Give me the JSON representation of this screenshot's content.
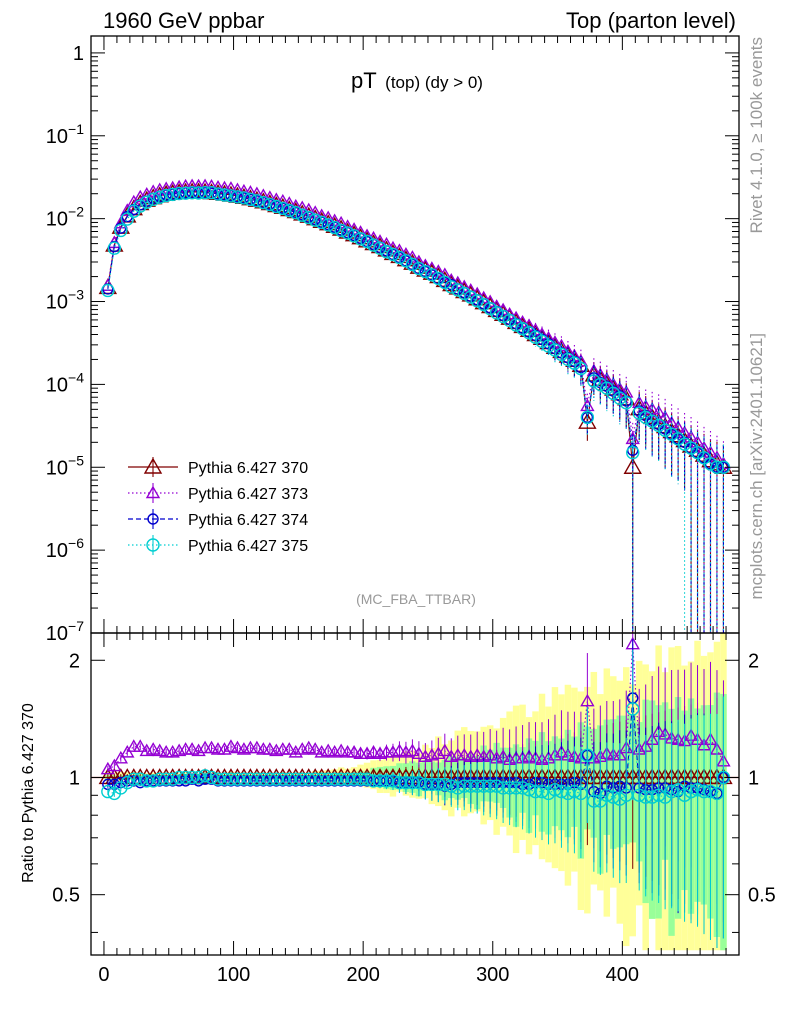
{
  "header": {
    "left": "1960 GeV ppbar",
    "right": "Top (parton level)"
  },
  "side_labels": {
    "rivet": "Rivet 4.1.0, ≥ 100k events",
    "mcplots": "mcplots.cern.ch [arXiv:2401.10621]"
  },
  "chart_data": {
    "type": "line",
    "title_main": "pT",
    "title_sub": "(top) (dy > 0)",
    "watermark": "(MC_FBA_TTBAR)",
    "xlabel": "",
    "ylabel_main": "",
    "ylabel_ratio": "Ratio to Pythia 6.427 370",
    "xlim": [
      -10,
      490
    ],
    "ylim_main": [
      1e-07,
      1.6
    ],
    "ylim_ratio": [
      0.35,
      2.35
    ],
    "y_scale_main": "log",
    "y_scale_ratio": "log",
    "x_ticks": [
      "0",
      "100",
      "200",
      "300",
      "400"
    ],
    "y_ticks_main": [
      {
        "value": 1,
        "base": "1",
        "exp": ""
      },
      {
        "value": 0.1,
        "base": "10",
        "exp": "−1"
      },
      {
        "value": 0.01,
        "base": "10",
        "exp": "−2"
      },
      {
        "value": 0.001,
        "base": "10",
        "exp": "−3"
      },
      {
        "value": 0.0001,
        "base": "10",
        "exp": "−4"
      },
      {
        "value": 1e-05,
        "base": "10",
        "exp": "−5"
      },
      {
        "value": 1e-06,
        "base": "10",
        "exp": "−6"
      },
      {
        "value": 1e-07,
        "base": "10",
        "exp": "−7"
      }
    ],
    "y_ticks_ratio": [
      {
        "value": 0.5,
        "label": "0.5"
      },
      {
        "value": 1,
        "label": "1"
      },
      {
        "value": 2,
        "label": "2"
      }
    ],
    "x": [
      3,
      8,
      13,
      18,
      23,
      28,
      33,
      38,
      43,
      48,
      53,
      58,
      63,
      68,
      73,
      78,
      83,
      88,
      93,
      98,
      103,
      108,
      113,
      118,
      123,
      128,
      133,
      138,
      143,
      148,
      153,
      158,
      163,
      168,
      173,
      178,
      183,
      188,
      193,
      198,
      203,
      208,
      213,
      218,
      223,
      228,
      233,
      238,
      243,
      248,
      253,
      258,
      263,
      268,
      273,
      278,
      283,
      288,
      293,
      298,
      303,
      308,
      313,
      318,
      323,
      328,
      333,
      338,
      343,
      348,
      353,
      358,
      363,
      368,
      373,
      378,
      383,
      388,
      393,
      398,
      403,
      408,
      413,
      418,
      423,
      428,
      433,
      438,
      443,
      448,
      453,
      458,
      463,
      468,
      473,
      478
    ],
    "series": [
      {
        "name": "Pythia 6.427 370",
        "color": "#800000",
        "marker": "triangle-up-open",
        "line": "solid",
        "values": [
          0.00148,
          0.0048,
          0.0079,
          0.0108,
          0.0132,
          0.0152,
          0.0167,
          0.0179,
          0.0189,
          0.0197,
          0.0202,
          0.0206,
          0.0209,
          0.021,
          0.021,
          0.0209,
          0.0206,
          0.0202,
          0.0198,
          0.0193,
          0.0187,
          0.0181,
          0.0174,
          0.0167,
          0.016,
          0.0152,
          0.0144,
          0.0137,
          0.0129,
          0.0122,
          0.0114,
          0.0107,
          0.01,
          0.0093,
          0.0087,
          0.0081,
          0.0075,
          0.0069,
          0.0064,
          0.0059,
          0.0054,
          0.005,
          0.0046,
          0.0042,
          0.0038,
          0.0035,
          0.0032,
          0.0029,
          0.0026,
          0.0024,
          0.0022,
          0.002,
          0.0018,
          0.0016,
          0.00146,
          0.00132,
          0.0012,
          0.00108,
          0.00097,
          0.00087,
          0.00078,
          0.0007,
          0.00063,
          0.00056,
          0.0005,
          0.00045,
          0.0004,
          0.00036,
          0.00032,
          0.00028,
          0.00025,
          0.00022,
          0.000195,
          0.00017,
          3.5e-05,
          0.00013,
          0.000115,
          0.0001,
          8.8e-05,
          7.7e-05,
          6.7e-05,
          1e-05,
          5.1e-05,
          4.5e-05,
          4e-05,
          3.5e-05,
          3.1e-05,
          2.7e-05,
          2.4e-05,
          2.1e-05,
          1.8e-05,
          1.6e-05,
          1.4e-05,
          1.2e-05,
          1.1e-05,
          1e-05
        ],
        "ratio": [
          1,
          1,
          1,
          1,
          1,
          1,
          1,
          1,
          1,
          1,
          1,
          1,
          1,
          1,
          1,
          1,
          1,
          1,
          1,
          1,
          1,
          1,
          1,
          1,
          1,
          1,
          1,
          1,
          1,
          1,
          1,
          1,
          1,
          1,
          1,
          1,
          1,
          1,
          1,
          1,
          1,
          1,
          1,
          1,
          1,
          1,
          1,
          1,
          1,
          1,
          1,
          1,
          1,
          1,
          1,
          1,
          1,
          1,
          1,
          1,
          1,
          1,
          1,
          1,
          1,
          1,
          1,
          1,
          1,
          1,
          1,
          1,
          1,
          1,
          1,
          1,
          1,
          1,
          1,
          1,
          1,
          1,
          1,
          1,
          1,
          1,
          1,
          1,
          1,
          1,
          1,
          1,
          1,
          1,
          1,
          1
        ]
      },
      {
        "name": "Pythia 6.427 373",
        "color": "#9400D3",
        "marker": "triangle-up-open-small",
        "line": "dotted",
        "values": [
          0.00155,
          0.0051,
          0.0088,
          0.0125,
          0.0158,
          0.0182,
          0.0196,
          0.0211,
          0.0222,
          0.0229,
          0.0234,
          0.024,
          0.0246,
          0.0248,
          0.0247,
          0.0248,
          0.0245,
          0.0238,
          0.0234,
          0.0231,
          0.0222,
          0.0214,
          0.0207,
          0.0199,
          0.0189,
          0.0179,
          0.0169,
          0.0162,
          0.0152,
          0.0141,
          0.0135,
          0.0127,
          0.0118,
          0.0108,
          0.0102,
          0.0094,
          0.0088,
          0.008,
          0.0074,
          0.0068,
          0.0062,
          0.0058,
          0.0053,
          0.0049,
          0.0044,
          0.0041,
          0.0037,
          0.0034,
          0.003,
          0.0027,
          0.0025,
          0.0023,
          0.0021,
          0.0018,
          0.00167,
          0.0015,
          0.00136,
          0.00123,
          0.0011,
          0.00099,
          0.00087,
          0.00079,
          0.0007,
          0.00063,
          0.00056,
          0.00051,
          0.00045,
          0.0004,
          0.00036,
          0.00032,
          0.00029,
          0.00025,
          0.00022,
          0.00019,
          5.5e-05,
          0.000145,
          0.00013,
          0.000115,
          0.0001,
          8.8e-05,
          8e-05,
          2.2e-05,
          6e-05,
          5.4e-05,
          5e-05,
          4.6e-05,
          4e-05,
          3.4e-05,
          3e-05,
          2.6e-05,
          2.3e-05,
          2e-05,
          1.7e-05,
          1.5e-05,
          1.3e-05,
          1.1e-05
        ],
        "ratio": [
          1.05,
          1.07,
          1.12,
          1.16,
          1.2,
          1.2,
          1.17,
          1.18,
          1.17,
          1.16,
          1.16,
          1.17,
          1.18,
          1.18,
          1.17,
          1.19,
          1.19,
          1.18,
          1.18,
          1.2,
          1.19,
          1.18,
          1.19,
          1.19,
          1.18,
          1.18,
          1.17,
          1.18,
          1.18,
          1.16,
          1.18,
          1.19,
          1.18,
          1.16,
          1.17,
          1.16,
          1.17,
          1.16,
          1.16,
          1.15,
          1.15,
          1.16,
          1.15,
          1.16,
          1.16,
          1.17,
          1.16,
          1.17,
          1.15,
          1.13,
          1.14,
          1.15,
          1.17,
          1.13,
          1.14,
          1.14,
          1.13,
          1.14,
          1.13,
          1.14,
          1.12,
          1.13,
          1.11,
          1.12,
          1.12,
          1.13,
          1.12,
          1.11,
          1.12,
          1.14,
          1.16,
          1.14,
          1.13,
          1.12,
          1.57,
          1.12,
          1.13,
          1.15,
          1.14,
          1.14,
          1.19,
          2.2,
          1.18,
          1.2,
          1.25,
          1.31,
          1.29,
          1.26,
          1.25,
          1.24,
          1.28,
          1.25,
          1.21,
          1.25,
          1.18,
          1.1
        ]
      },
      {
        "name": "Pythia 6.427 374",
        "color": "#0000CD",
        "marker": "circle-open-small",
        "line": "dashed",
        "values": [
          0.00142,
          0.0046,
          0.0077,
          0.0106,
          0.0129,
          0.0147,
          0.0163,
          0.0176,
          0.0185,
          0.0193,
          0.0198,
          0.0201,
          0.0205,
          0.0207,
          0.0206,
          0.0206,
          0.0203,
          0.0199,
          0.0194,
          0.019,
          0.0184,
          0.0178,
          0.0171,
          0.0164,
          0.0157,
          0.0149,
          0.0141,
          0.0134,
          0.0126,
          0.0119,
          0.0112,
          0.0105,
          0.0098,
          0.0091,
          0.0085,
          0.0079,
          0.0073,
          0.0068,
          0.0063,
          0.0058,
          0.0053,
          0.0049,
          0.0045,
          0.0041,
          0.0037,
          0.0034,
          0.0031,
          0.0028,
          0.0025,
          0.0023,
          0.0021,
          0.0019,
          0.0017,
          0.0016,
          0.00142,
          0.00128,
          0.00116,
          0.00105,
          0.00094,
          0.00084,
          0.00076,
          0.00068,
          0.00061,
          0.00054,
          0.00048,
          0.00043,
          0.00039,
          0.00035,
          0.00031,
          0.00027,
          0.00024,
          0.00021,
          0.00019,
          0.00016,
          4e-05,
          0.00012,
          0.000105,
          9.5e-05,
          8.3e-05,
          7.3e-05,
          6.3e-05,
          1.6e-05,
          4.8e-05,
          4.2e-05,
          3.7e-05,
          3.3e-05,
          2.9e-05,
          2.5e-05,
          2.2e-05,
          2e-05,
          1.7e-05,
          1.5e-05,
          1.3e-05,
          1.1e-05,
          1e-05,
          1e-05
        ],
        "ratio": [
          0.96,
          0.96,
          0.97,
          0.98,
          0.98,
          0.97,
          0.98,
          0.98,
          0.98,
          0.98,
          0.98,
          0.98,
          0.98,
          0.99,
          0.98,
          0.99,
          0.99,
          0.98,
          0.98,
          0.98,
          0.98,
          0.98,
          0.98,
          0.98,
          0.98,
          0.98,
          0.98,
          0.98,
          0.98,
          0.98,
          0.98,
          0.98,
          0.98,
          0.98,
          0.98,
          0.98,
          0.98,
          0.98,
          0.98,
          0.98,
          0.98,
          0.98,
          0.98,
          0.98,
          0.98,
          0.97,
          0.97,
          0.97,
          0.97,
          0.96,
          0.96,
          0.96,
          0.95,
          0.96,
          0.97,
          0.97,
          0.97,
          0.97,
          0.97,
          0.97,
          0.97,
          0.97,
          0.97,
          0.97,
          0.96,
          0.96,
          0.97,
          0.97,
          0.96,
          0.96,
          0.96,
          0.96,
          0.97,
          0.96,
          1.14,
          0.92,
          0.91,
          0.95,
          0.94,
          0.95,
          0.94,
          1.6,
          0.94,
          0.93,
          0.93,
          0.94,
          0.94,
          0.93,
          0.92,
          0.95,
          0.94,
          0.94,
          0.93,
          0.92,
          0.91,
          1.0
        ]
      },
      {
        "name": "Pythia 6.427 375",
        "color": "#00CED1",
        "marker": "circle-open",
        "line": "dotted",
        "values": [
          0.00136,
          0.0044,
          0.0072,
          0.0099,
          0.0123,
          0.0142,
          0.0158,
          0.0171,
          0.0181,
          0.019,
          0.0196,
          0.0201,
          0.0203,
          0.0205,
          0.0204,
          0.0206,
          0.0206,
          0.0198,
          0.0193,
          0.0188,
          0.0183,
          0.0178,
          0.0171,
          0.0164,
          0.0156,
          0.0148,
          0.014,
          0.0133,
          0.0125,
          0.0118,
          0.011,
          0.0103,
          0.0096,
          0.009,
          0.0084,
          0.0078,
          0.0072,
          0.0067,
          0.0062,
          0.0057,
          0.0053,
          0.0048,
          0.0044,
          0.004,
          0.0037,
          0.0034,
          0.0031,
          0.0028,
          0.0025,
          0.0023,
          0.0021,
          0.0019,
          0.0017,
          0.0015,
          0.00138,
          0.00125,
          0.00113,
          0.00102,
          0.00092,
          0.00082,
          0.00073,
          0.00066,
          0.00059,
          0.00052,
          0.00047,
          0.00042,
          0.00037,
          0.00033,
          0.00029,
          0.00026,
          0.00023,
          0.0002,
          0.00018,
          0.000155,
          4e-05,
          0.00011,
          0.0001,
          9e-05,
          7.8e-05,
          6.8e-05,
          6e-05,
          1.5e-05,
          4.5e-05,
          4e-05,
          3.6e-05,
          3.2e-05,
          2.8e-05,
          2.5e-05,
          2.2e-05,
          1.9e-05,
          1.7e-05,
          1.5e-05,
          1.3e-05,
          1.1e-05,
          1e-05,
          1e-05
        ],
        "ratio": [
          0.92,
          0.91,
          0.94,
          0.97,
          0.99,
          0.99,
          0.98,
          0.98,
          0.99,
          0.99,
          0.99,
          1.0,
          1.0,
          1.0,
          1.0,
          1.01,
          1.0,
          0.99,
          0.99,
          0.99,
          0.99,
          0.99,
          0.99,
          0.99,
          0.99,
          0.99,
          0.99,
          0.99,
          0.99,
          0.99,
          0.99,
          0.99,
          0.99,
          0.99,
          0.99,
          0.99,
          0.99,
          0.99,
          0.99,
          0.99,
          0.99,
          0.98,
          0.98,
          0.98,
          0.98,
          0.97,
          0.97,
          0.97,
          0.97,
          0.96,
          0.96,
          0.96,
          0.96,
          0.95,
          0.94,
          0.95,
          0.95,
          0.95,
          0.95,
          0.95,
          0.95,
          0.94,
          0.94,
          0.94,
          0.94,
          0.93,
          0.92,
          0.92,
          0.91,
          0.93,
          0.92,
          0.91,
          0.92,
          0.91,
          1.14,
          0.87,
          0.87,
          0.9,
          0.89,
          0.88,
          0.9,
          1.5,
          0.9,
          0.89,
          0.89,
          0.9,
          0.89,
          0.92,
          0.93,
          0.9,
          0.92,
          0.93,
          0.92,
          0.92,
          0.91,
          1.0
        ]
      }
    ]
  }
}
